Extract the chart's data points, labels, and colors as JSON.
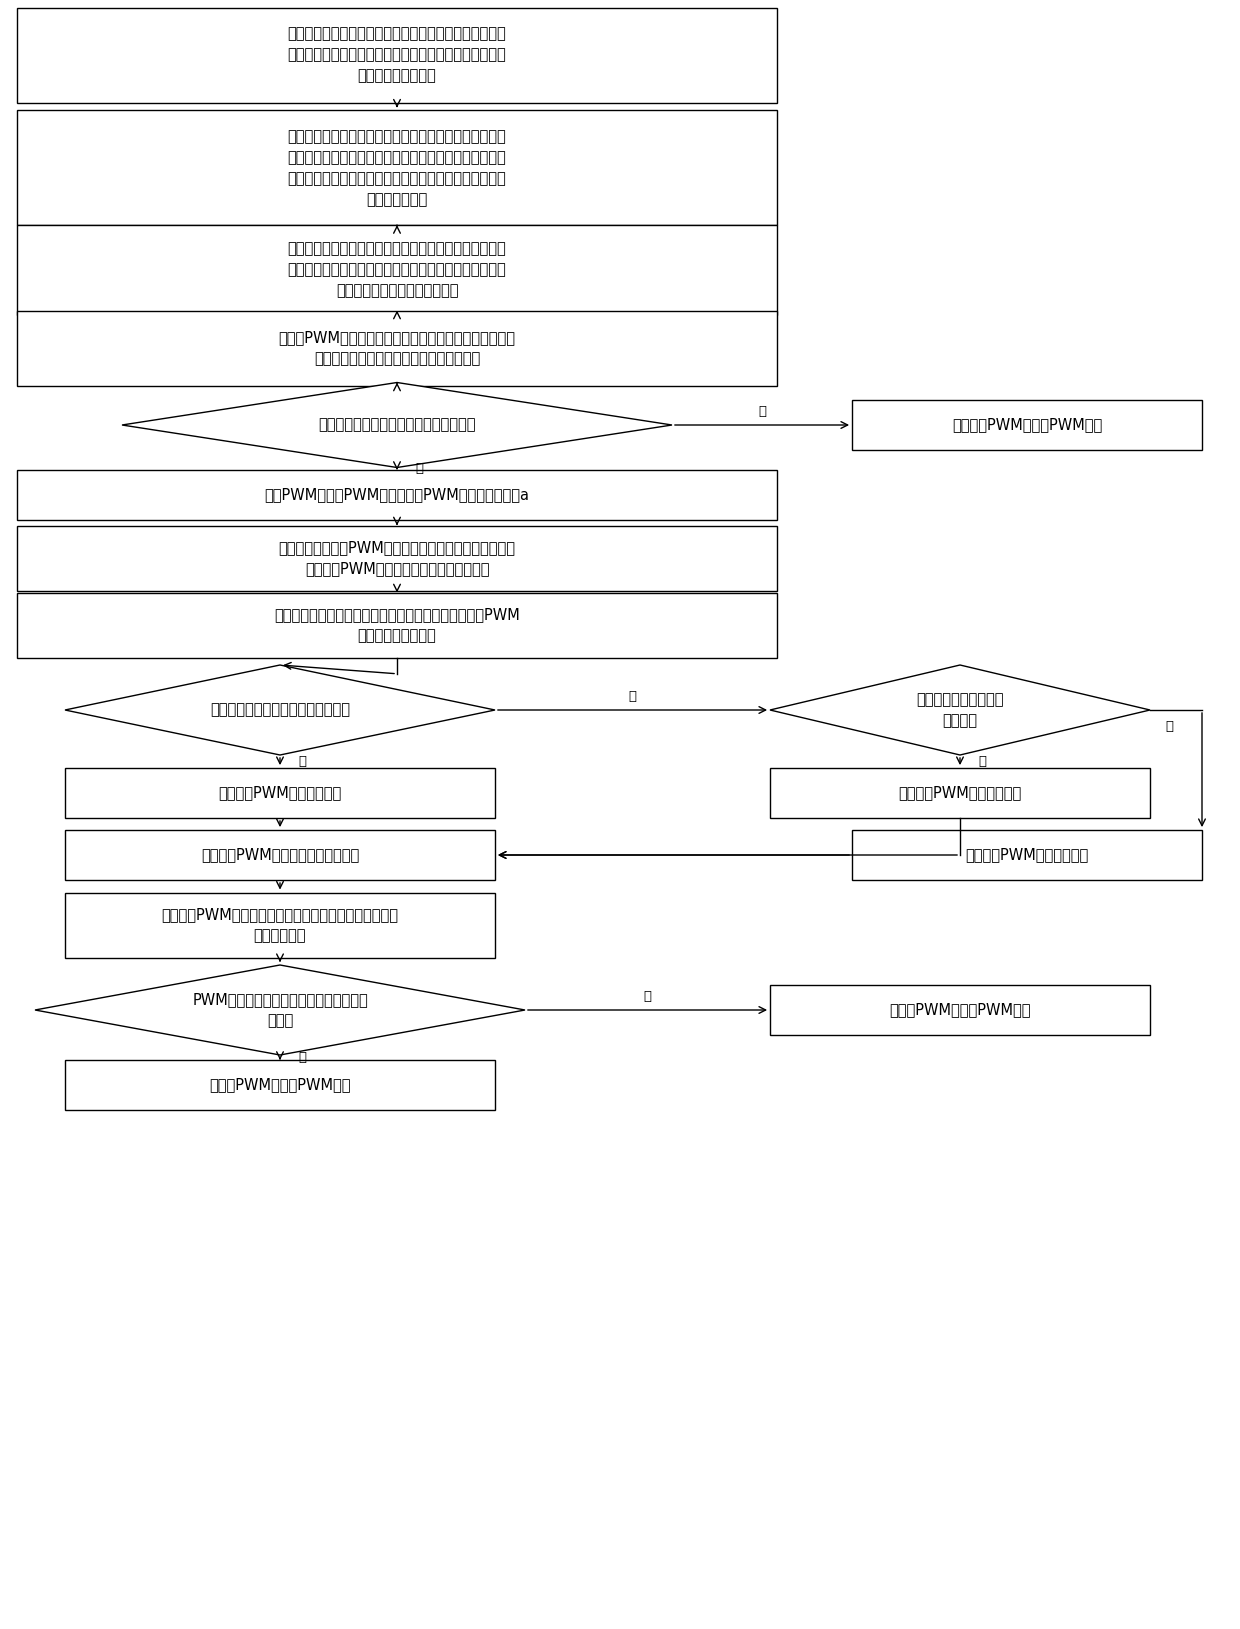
{
  "bg_color": "#ffffff",
  "box_color": "#ffffff",
  "box_edge": "#000000",
  "text_color": "#000000",
  "arrow_color": "#000000",
  "box1_text": "在充电桩内预设多个温度采集点，且针对各温度采集点分\n别采集若干实时温度数据，分别形成对应不同温度采集点\n的实时温度数据序列",
  "box2_text": "分别过滤掉各实时温度数据序列内的实时温度数据最大值\n和实时温度数据最小值，计算各实时温度数据序列经过所\n述过滤处理后的温度有效值，形成包含所有温度有效值的\n温度有效值序列",
  "box3_text": "选取所述温度有效值序列内温度有效值的最大值和温度有\n效值的最小值，计算所述温度有效值的最大值与所述温度\n有效值的最小值之间的温度差值",
  "box4_text": "先设定PWM风扇的启动温度阈值，并根据所述温度有效值\n的最大值与所述启动温度阈值做出判断处理",
  "dia1_text": "温度有效值的最大值大于启动温度阈值？",
  "box5_text": "不予启动PWM风扇的PWM输出",
  "box6_text": "启动PWM风扇的PWM输出，且令PWM输出的占空比为a",
  "box7_text": "预先设定启动提高PWM输出占空比的第一温度差阈值以及\n启动降低PWM输出占空比的第二温度差阈值",
  "box8_text": "根据温度差值、第一温度差阈值和第二温度差阈值，对PWM\n输出的占空比做调整",
  "dia2_text": "温度差值大于所述第一温度差阈值？",
  "dia3_text": "温度差值小于第二温度\n差阈值？",
  "box9_text": "提高所述PWM输出的占空比",
  "box10_text": "降低所述PWM输出的占空比",
  "box11_text": "获取所述PWM风扇的实时温度数据值",
  "box12_text": "不予调整PWM输出的占空比",
  "box13_text": "根据所述PWM风扇的实时温度数据值与所述启动温度阈值\n做出判断处理",
  "dia4_text": "PWM风扇的实时温度数据值小于启动温度\n阈值？",
  "box14_text": "保持该PWM风扇的PWM输出",
  "box15_text": "关闭该PWM风扇的PWM输出",
  "label_yes": "是",
  "label_no": "否"
}
